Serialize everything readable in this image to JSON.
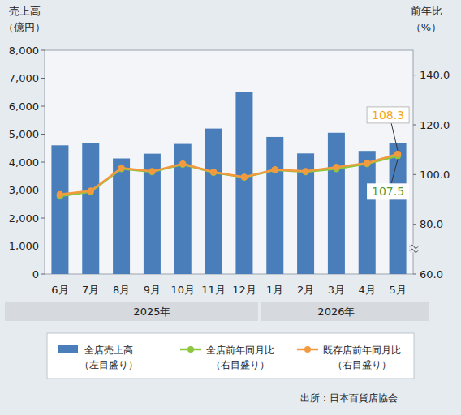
{
  "chart_data": {
    "type": "bar",
    "ylabel": "売上高\n（億円）",
    "y2label": "前年比\n（%）",
    "source": "出所：日本百貨店協会",
    "categories": [
      "6月",
      "7月",
      "8月",
      "9月",
      "10月",
      "11月",
      "12月",
      "1月",
      "2月",
      "3月",
      "4月",
      "5月"
    ],
    "groups": [
      {
        "label": "2025年",
        "from": 0,
        "to": 6
      },
      {
        "label": "2026年",
        "from": 7,
        "to": 11
      }
    ],
    "series": [
      {
        "name": "全店売上高",
        "legend_note": "（左目盛り）",
        "type": "bar",
        "color": "#4a7ebb",
        "values": [
          4600,
          4680,
          4130,
          4300,
          4650,
          5200,
          6520,
          4900,
          4310,
          5050,
          4400,
          4680
        ]
      },
      {
        "name": "全店前年同月比",
        "legend_note": "（右目盛り）",
        "type": "line",
        "axis": "y2",
        "color": "#8dc63f",
        "marker": "circle",
        "values": [
          91.3,
          93.1,
          102.3,
          101.1,
          104.1,
          100.8,
          98.9,
          101.8,
          101.1,
          102.3,
          104.3,
          107.5
        ],
        "value_labels": [
          null,
          null,
          null,
          null,
          null,
          null,
          null,
          null,
          null,
          null,
          null,
          "107.5"
        ]
      },
      {
        "name": "既存店前年同月比",
        "legend_note": "（右目盛り）",
        "type": "line",
        "axis": "y2",
        "color": "#f39a3e",
        "marker": "circle",
        "values": [
          92.0,
          93.4,
          102.6,
          101.3,
          104.3,
          101.0,
          99.0,
          102.0,
          101.3,
          103.0,
          104.6,
          108.3
        ],
        "value_labels": [
          null,
          null,
          null,
          null,
          null,
          null,
          null,
          null,
          null,
          null,
          null,
          "108.3"
        ]
      }
    ],
    "ylim": [
      0,
      8000
    ],
    "yticks": [
      0,
      {
        "value": 1000,
        "label": "1,000"
      },
      {
        "value": 2000,
        "label": "2,000"
      },
      {
        "value": 3000,
        "label": "3,000"
      },
      {
        "value": 4000,
        "label": "4,000"
      },
      {
        "value": 5000,
        "label": "5,000"
      },
      {
        "value": 6000,
        "label": "6,000"
      },
      {
        "value": 7000,
        "label": "7,000"
      },
      {
        "value": 8000,
        "label": "8,000"
      }
    ],
    "y2lim": [
      60,
      150
    ],
    "y2ticks": [
      {
        "value": 60,
        "label": "60.0"
      },
      {
        "value": 80,
        "label": "80.0"
      },
      {
        "value": 100,
        "label": "100.0"
      },
      {
        "value": 120,
        "label": "120.0"
      },
      {
        "value": 140,
        "label": "140.0"
      }
    ],
    "data_labels": true,
    "grid": false,
    "legend": "bottom"
  }
}
